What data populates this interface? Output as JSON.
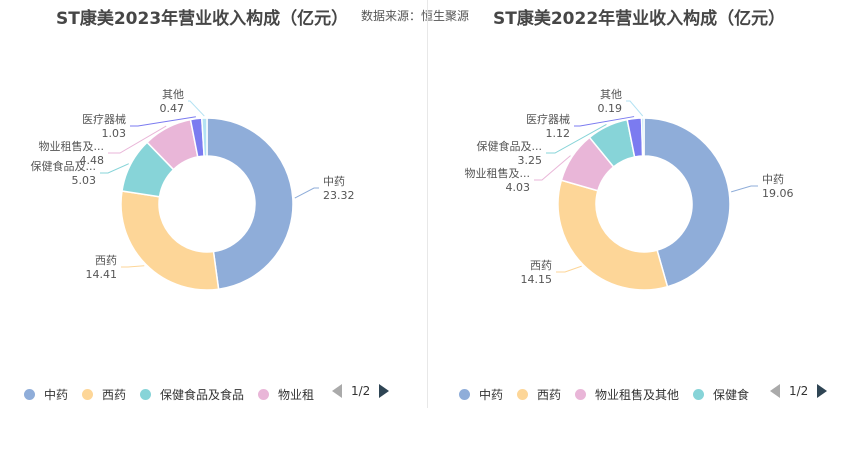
{
  "source_text": "数据来源：恒生聚源",
  "chart_data": [
    {
      "type": "pie",
      "title": "ST康美2023年营业收入构成（亿元）",
      "slices": [
        {
          "name": "中药",
          "value": 23.32,
          "color": "#8fadd9"
        },
        {
          "name": "西药",
          "value": 14.41,
          "color": "#fdd698"
        },
        {
          "name": "保健食品及...",
          "value": 5.03,
          "color": "#87d4d8"
        },
        {
          "name": "物业租售及...",
          "value": 4.48,
          "color": "#e9b6d8"
        },
        {
          "name": "医疗器械",
          "value": 1.03,
          "color": "#7b7bf0"
        },
        {
          "name": "其他",
          "value": 0.47,
          "color": "#b3e2f3"
        }
      ],
      "legend": {
        "items": [
          {
            "name": "中药",
            "color": "#8fadd9"
          },
          {
            "name": "西药",
            "color": "#fdd698"
          },
          {
            "name": "保健食品及食品",
            "color": "#87d4d8"
          },
          {
            "name": "物业租",
            "color": "#e9b6d8"
          }
        ],
        "page": "1/2",
        "placement": "bottom"
      }
    },
    {
      "type": "pie",
      "title": "ST康美2022年营业收入构成（亿元）",
      "slices": [
        {
          "name": "中药",
          "value": 19.06,
          "color": "#8fadd9"
        },
        {
          "name": "西药",
          "value": 14.15,
          "color": "#fdd698"
        },
        {
          "name": "物业租售及...",
          "value": 4.03,
          "color": "#e9b6d8"
        },
        {
          "name": "保健食品及...",
          "value": 3.25,
          "color": "#87d4d8"
        },
        {
          "name": "医疗器械",
          "value": 1.12,
          "color": "#7b7bf0"
        },
        {
          "name": "其他",
          "value": 0.19,
          "color": "#b3e2f3"
        }
      ],
      "legend": {
        "items": [
          {
            "name": "中药",
            "color": "#8fadd9"
          },
          {
            "name": "西药",
            "color": "#fdd698"
          },
          {
            "name": "物业租售及其他",
            "color": "#e9b6d8"
          },
          {
            "name": "保健食",
            "color": "#87d4d8"
          }
        ],
        "page": "1/2",
        "placement": "bottom"
      }
    }
  ]
}
